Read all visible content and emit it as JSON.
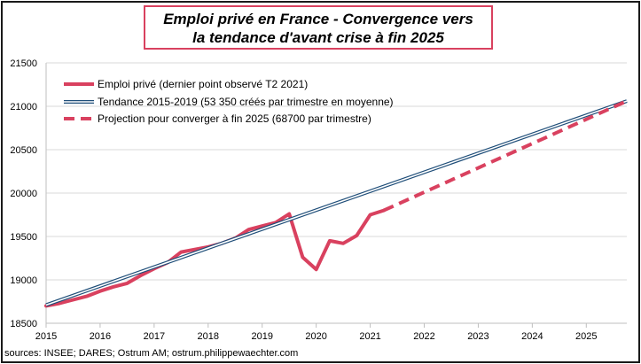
{
  "chart_data": {
    "type": "line",
    "title_line1": "Emploi privé en France - Convergence vers",
    "title_line2": "la tendance d'avant crise à fin 2025",
    "source": "sources: INSEE; DARES; Ostrum AM;  ostrum.philippewaechter.com",
    "xlabel": "",
    "ylabel": "",
    "xlim": [
      2015,
      2025.75
    ],
    "ylim": [
      18500,
      21500
    ],
    "yticks": [
      18500,
      19000,
      19500,
      20000,
      20500,
      21000,
      21500
    ],
    "xticks": [
      2015,
      2016,
      2017,
      2018,
      2019,
      2020,
      2021,
      2022,
      2023,
      2024,
      2025
    ],
    "grid": "horizontal",
    "legend_position": "top-left",
    "colors": {
      "emploi": "#d9415f",
      "tendance_outline": "#1f4e79",
      "tendance_fill": "#ffffff",
      "projection": "#d9415f",
      "grid": "#d9d9d9"
    },
    "series": [
      {
        "name": "Emploi privé (dernier point observé T2 2021)",
        "style": "solid",
        "x": [
          2015,
          2015.25,
          2015.5,
          2015.75,
          2016,
          2016.25,
          2016.5,
          2016.75,
          2017,
          2017.25,
          2017.5,
          2017.75,
          2018,
          2018.25,
          2018.5,
          2018.75,
          2019,
          2019.25,
          2019.5,
          2019.75,
          2020,
          2020.25,
          2020.5,
          2020.75,
          2021,
          2021.25
        ],
        "values": [
          18700,
          18730,
          18770,
          18810,
          18870,
          18920,
          18960,
          19050,
          19130,
          19200,
          19320,
          19350,
          19380,
          19420,
          19480,
          19580,
          19620,
          19660,
          19760,
          19260,
          19120,
          19450,
          19420,
          19510,
          19750,
          19800
        ]
      },
      {
        "name": "Tendance 2015-2019 (53 350 créés par trimestre en moyenne)",
        "style": "double",
        "x": [
          2015,
          2025.75
        ],
        "values": [
          18710,
          21060
        ]
      },
      {
        "name": "Projection pour converger à fin 2025 (68700 par trimestre)",
        "style": "dashed",
        "x": [
          2021.25,
          2025.75
        ],
        "values": [
          19800,
          21060
        ]
      }
    ]
  }
}
